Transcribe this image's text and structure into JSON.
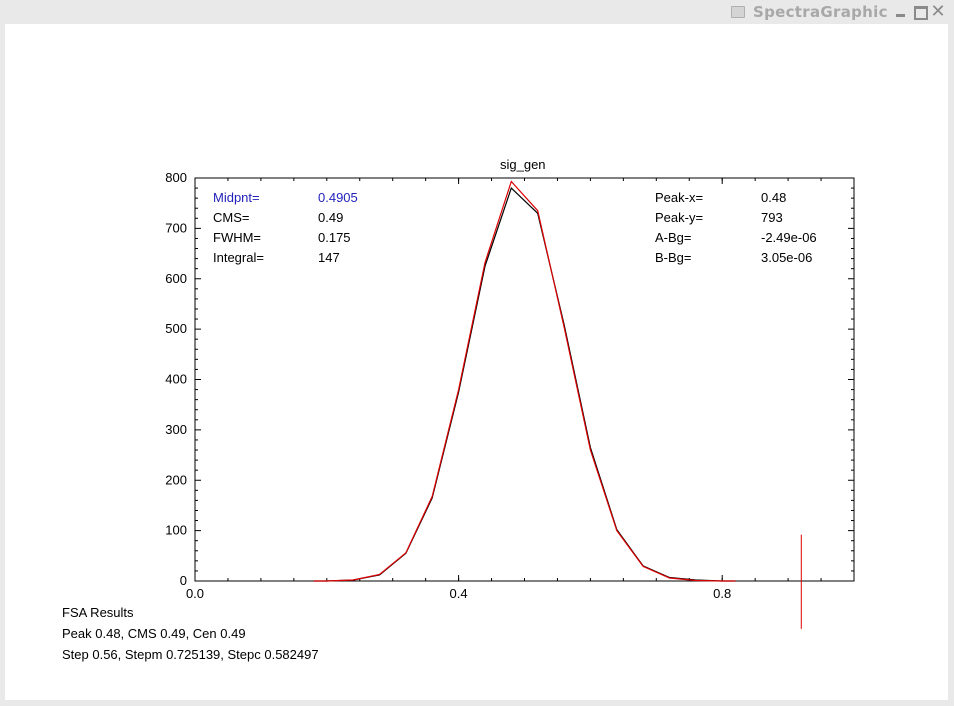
{
  "window": {
    "title": "SpectraGraphic",
    "minimize_label": "",
    "maximize_label": "",
    "close_label": "✕"
  },
  "stats_left": [
    {
      "label": "Midpnt=",
      "value": "0.4905",
      "highlight": true
    },
    {
      "label": "CMS=",
      "value": "0.49",
      "highlight": false
    },
    {
      "label": "FWHM=",
      "value": "0.175",
      "highlight": false
    },
    {
      "label": "Integral=",
      "value": "147",
      "highlight": false
    }
  ],
  "stats_right": [
    {
      "label": "Peak-x=",
      "value": "0.48"
    },
    {
      "label": "Peak-y=",
      "value": "793"
    },
    {
      "label": "A-Bg=",
      "value": "-2.49e-06"
    },
    {
      "label": "B-Bg=",
      "value": "3.05e-06"
    }
  ],
  "fsa": {
    "heading": "FSA Results",
    "line1": "Peak 0.48, CMS 0.49, Cen 0.49",
    "line2": "Step 0.56, Stepm 0.725139, Stepc 0.582497"
  },
  "colors": {
    "red_series": "#dd0000",
    "black_series": "#000000",
    "highlight_text": "#2222bb"
  },
  "chart_data": {
    "type": "line",
    "title": "sig_gen",
    "xlabel": "",
    "ylabel": "",
    "xlim": [
      0.0,
      1.0
    ],
    "ylim": [
      0,
      800
    ],
    "x_ticks": [
      0.0,
      0.4,
      0.8
    ],
    "x_tick_labels": [
      "0.0",
      "0.4",
      "0.8"
    ],
    "y_ticks": [
      0,
      100,
      200,
      300,
      400,
      500,
      600,
      700,
      800
    ],
    "y_tick_labels": [
      "0",
      "100",
      "200",
      "300",
      "400",
      "500",
      "600",
      "700",
      "800"
    ],
    "grid": false,
    "series": [
      {
        "color": "#000000",
        "x": [
          0.18,
          0.2,
          0.24,
          0.28,
          0.32,
          0.36,
          0.4,
          0.44,
          0.48,
          0.52,
          0.56,
          0.6,
          0.64,
          0.68,
          0.72,
          0.76,
          0.8,
          0.82
        ],
        "y": [
          0,
          0,
          2,
          12,
          55,
          165,
          375,
          625,
          780,
          730,
          510,
          265,
          102,
          30,
          7,
          2,
          0,
          0
        ]
      },
      {
        "color": "#dd0000",
        "x": [
          0.18,
          0.2,
          0.24,
          0.28,
          0.32,
          0.36,
          0.4,
          0.44,
          0.48,
          0.52,
          0.56,
          0.6,
          0.64,
          0.68,
          0.72,
          0.76,
          0.8,
          0.82
        ],
        "y": [
          0,
          0,
          2,
          13,
          56,
          168,
          380,
          632,
          793,
          735,
          505,
          260,
          100,
          29,
          6,
          1,
          0,
          0
        ]
      }
    ],
    "marker_line": {
      "x": 0.92,
      "y_from": -95,
      "y_to": 92,
      "color": "#dd0000"
    }
  }
}
